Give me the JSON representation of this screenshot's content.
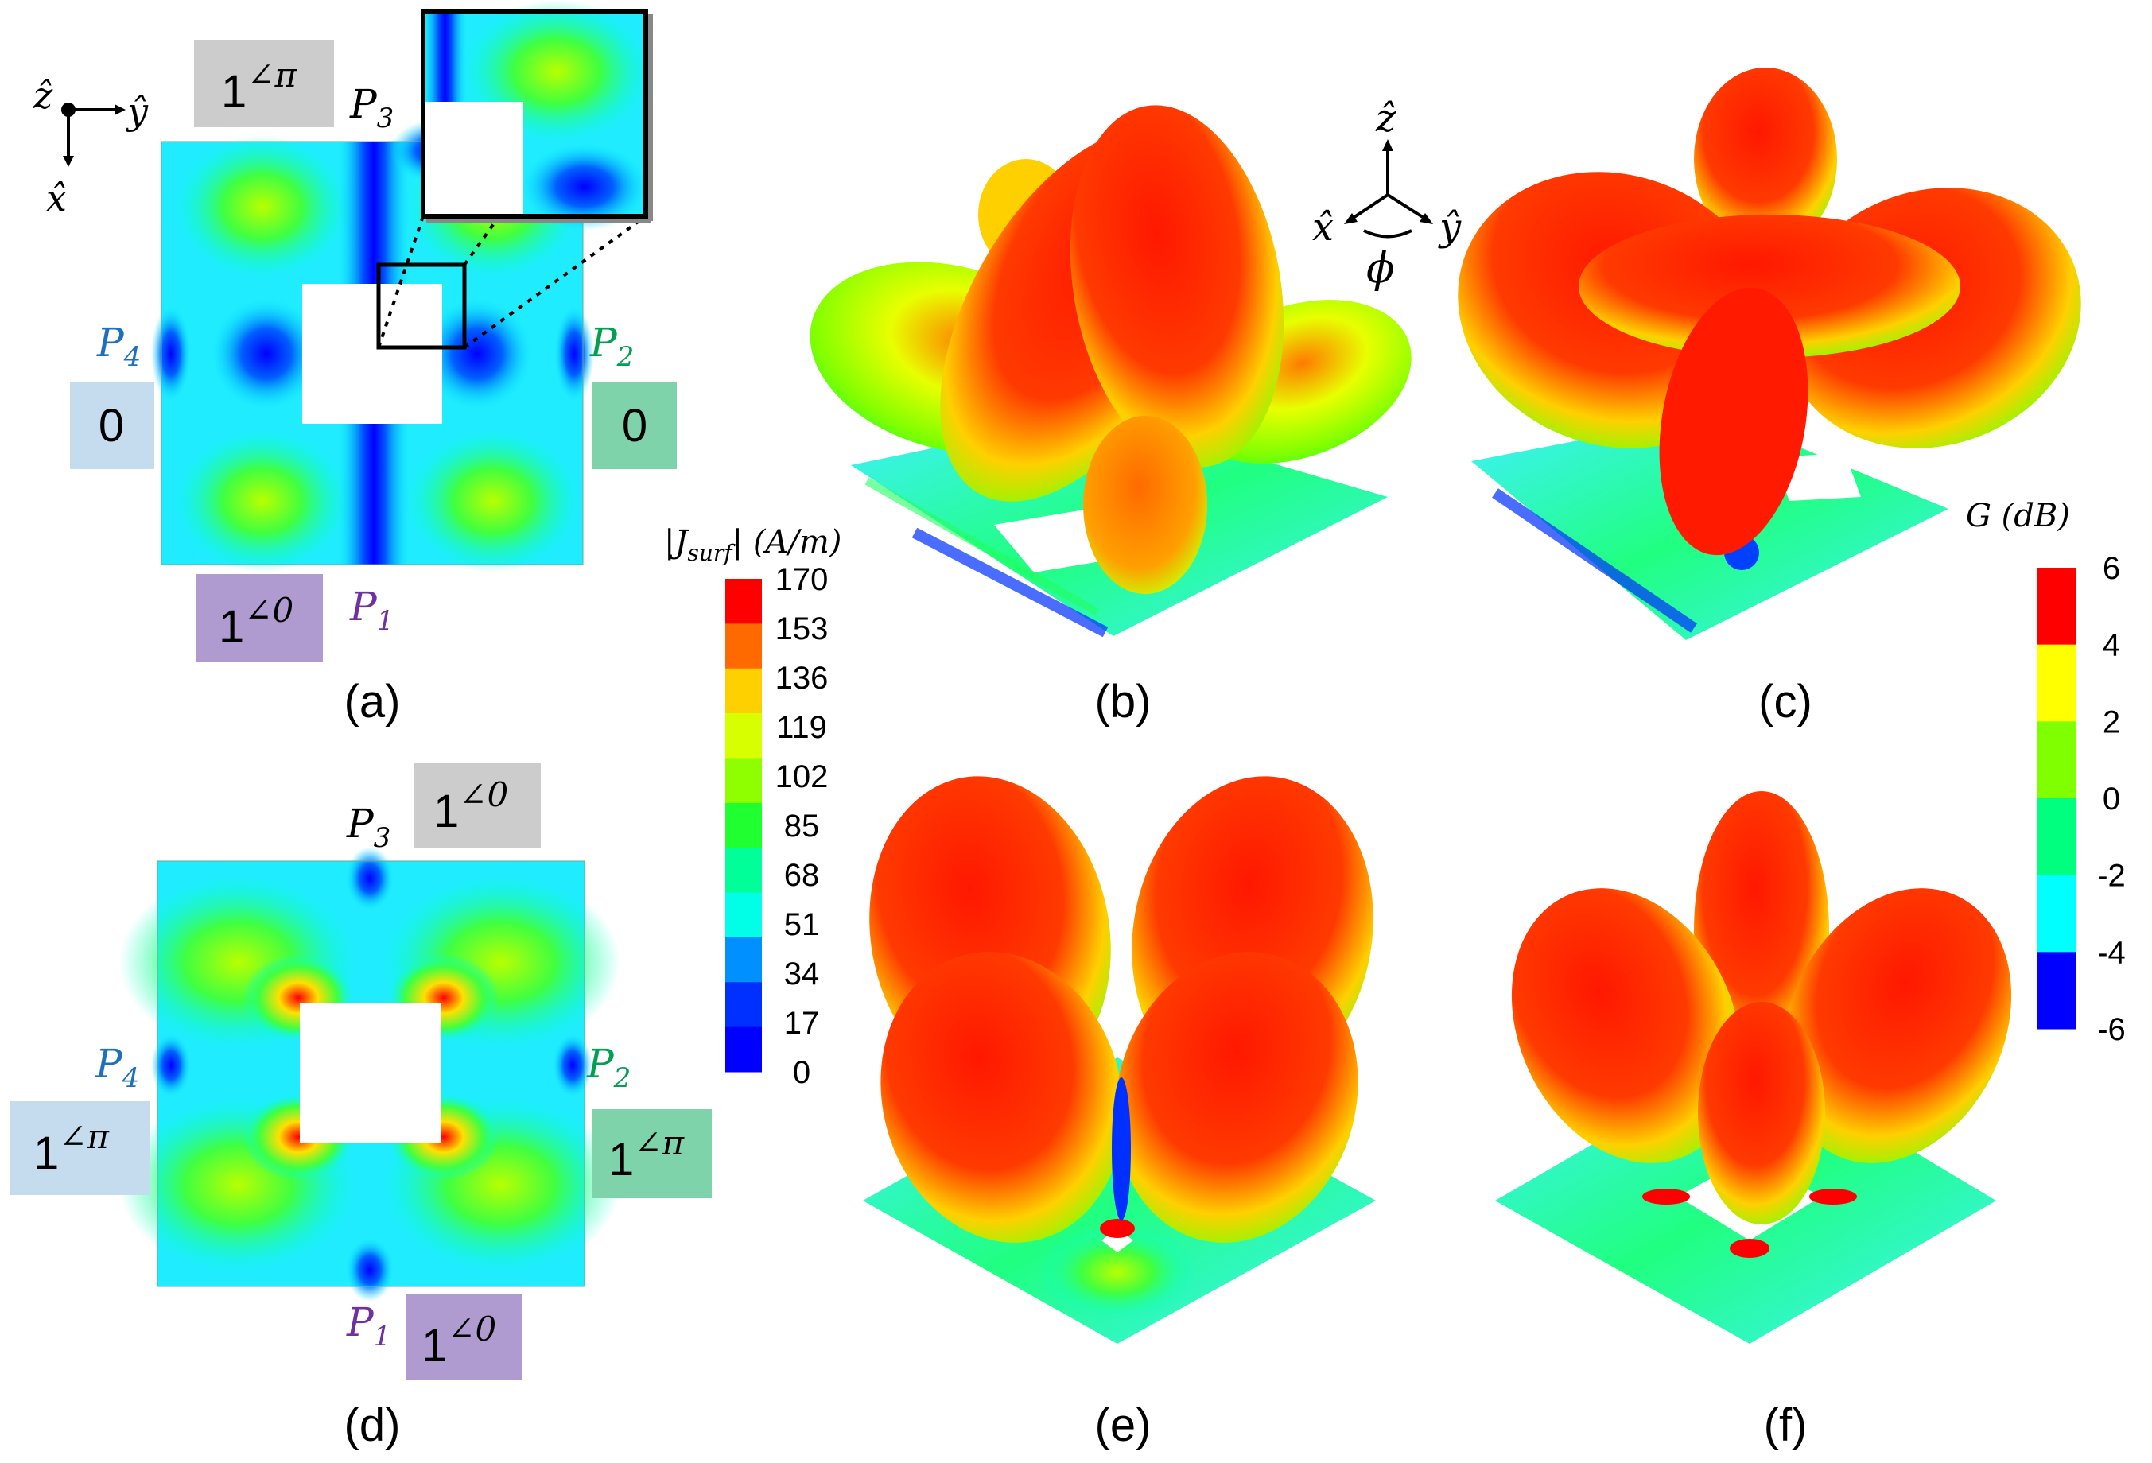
{
  "panels": {
    "a": "(a)",
    "b": "(b)",
    "c": "(c)",
    "d": "(d)",
    "e": "(e)",
    "f": "(f)"
  },
  "axes_xyz": {
    "z": "ẑ",
    "y": "ŷ",
    "x": "x̂",
    "phi": "ϕ"
  },
  "ports_a": {
    "p1_base": "P",
    "p1_sub": "1",
    "p1_val_base": "1",
    "p1_val_exp": "∠0",
    "p2_base": "P",
    "p2_sub": "2",
    "p2_val": "0",
    "p3_base": "P",
    "p3_sub": "3",
    "p3_val_base": "1",
    "p3_val_exp": "∠π",
    "p4_base": "P",
    "p4_sub": "4",
    "p4_val": "0"
  },
  "ports_d": {
    "p1_base": "P",
    "p1_sub": "1",
    "p1_val_base": "1",
    "p1_val_exp": "∠0",
    "p2_base": "P",
    "p2_sub": "2",
    "p2_val_base": "1",
    "p2_val_exp": "∠π",
    "p3_base": "P",
    "p3_sub": "3",
    "p3_val_base": "1",
    "p3_val_exp": "∠0",
    "p4_base": "P",
    "p4_sub": "4",
    "p4_val_base": "1",
    "p4_val_exp": "∠π"
  },
  "colorbar_current": {
    "title_prefix": "|J",
    "title_sub": "surf",
    "title_suffix": "| (A/m)",
    "ticks": [
      "170",
      "153",
      "136",
      "119",
      "102",
      "85",
      "68",
      "51",
      "34",
      "17",
      "0"
    ],
    "colors": [
      "#ff0000",
      "#ff6a00",
      "#ffd000",
      "#d7ff00",
      "#8fff00",
      "#20ff30",
      "#00ff99",
      "#00ffe6",
      "#0090ff",
      "#0030ff",
      "#0000ff"
    ]
  },
  "colorbar_gain": {
    "title": "G (dB)",
    "ticks": [
      "6",
      "4",
      "2",
      "0",
      "-2",
      "-4",
      "-6"
    ],
    "colors": [
      "#ff0000",
      "#ffff00",
      "#7fff00",
      "#00ff7f",
      "#00ffff",
      "#0000ff"
    ]
  },
  "colors": {
    "port_purple": "#b09bd0",
    "port_green": "#7fd3aa",
    "port_blue": "#c5dbee",
    "port_gray": "#cccccc",
    "p1_text": "#7030a0",
    "p2_text": "#00a050",
    "p4_text": "#1f6fc0"
  }
}
